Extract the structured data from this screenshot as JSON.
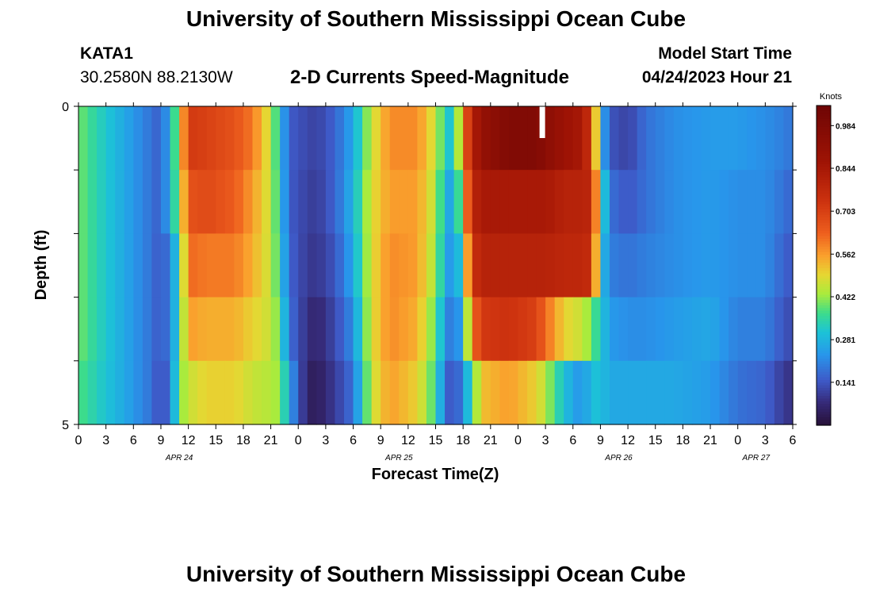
{
  "header": {
    "title": "University of Southern Mississippi Ocean Cube",
    "station": "KATA1",
    "coords": "30.2580N  88.2130W",
    "subtitle": "2-D Currents Speed-Magnitude",
    "model_start_label": "Model Start Time",
    "model_start_value": "04/24/2023 Hour 21"
  },
  "footer": {
    "title": "University of Southern Mississippi Ocean Cube"
  },
  "chart_data": {
    "type": "heatmap",
    "title": "2-D Currents Speed-Magnitude",
    "xlabel": "Forecast Time(Z)",
    "ylabel": "Depth (ft)",
    "x_start_hour": 0,
    "x_end_hour": 78,
    "x_step_hours": 1,
    "x_tick_labels": [
      "0",
      "3",
      "6",
      "9",
      "12",
      "15",
      "18",
      "21",
      "0",
      "3",
      "6",
      "9",
      "12",
      "15",
      "18",
      "21",
      "0",
      "3",
      "6",
      "9",
      "12",
      "15",
      "18",
      "21",
      "0",
      "3",
      "6"
    ],
    "date_labels": [
      {
        "label": "APR 24",
        "hour": 11
      },
      {
        "label": "APR 25",
        "hour": 35
      },
      {
        "label": "APR 26",
        "hour": 59
      },
      {
        "label": "APR 27",
        "hour": 74
      }
    ],
    "ylim": [
      0,
      5
    ],
    "y_tick_labels": [
      "0",
      "5"
    ],
    "depth_rows": 5,
    "colorbar": {
      "label": "Knots",
      "ticks": [
        0.141,
        0.281,
        0.422,
        0.562,
        0.703,
        0.844,
        0.984
      ],
      "min": 0.0,
      "max": 1.05
    },
    "control_points": [
      [
        0,
        0.4,
        0.4,
        0.4,
        0.4,
        0.38
      ],
      [
        2,
        0.34,
        0.34,
        0.34,
        0.34,
        0.33
      ],
      [
        5,
        0.26,
        0.26,
        0.26,
        0.26,
        0.26
      ],
      [
        8,
        0.18,
        0.18,
        0.18,
        0.18,
        0.18
      ],
      [
        9,
        0.15,
        0.15,
        0.14,
        0.14,
        0.12
      ],
      [
        10,
        0.28,
        0.28,
        0.2,
        0.2,
        0.18
      ],
      [
        11,
        0.45,
        0.42,
        0.35,
        0.35,
        0.4
      ],
      [
        12,
        0.72,
        0.66,
        0.62,
        0.56,
        0.46
      ],
      [
        14,
        0.7,
        0.68,
        0.6,
        0.54,
        0.5
      ],
      [
        17,
        0.66,
        0.64,
        0.6,
        0.54,
        0.5
      ],
      [
        19,
        0.6,
        0.56,
        0.54,
        0.5,
        0.46
      ],
      [
        21,
        0.46,
        0.46,
        0.46,
        0.46,
        0.44
      ],
      [
        22,
        0.3,
        0.32,
        0.34,
        0.38,
        0.42
      ],
      [
        23,
        0.15,
        0.15,
        0.16,
        0.18,
        0.25
      ],
      [
        25,
        0.12,
        0.11,
        0.1,
        0.08,
        0.05
      ],
      [
        26,
        0.11,
        0.1,
        0.09,
        0.06,
        0.04
      ],
      [
        28,
        0.16,
        0.16,
        0.14,
        0.12,
        0.1
      ],
      [
        30,
        0.26,
        0.28,
        0.26,
        0.22,
        0.18
      ],
      [
        32,
        0.46,
        0.48,
        0.48,
        0.48,
        0.46
      ],
      [
        34,
        0.58,
        0.56,
        0.58,
        0.58,
        0.56
      ],
      [
        37,
        0.58,
        0.56,
        0.56,
        0.54,
        0.5
      ],
      [
        39,
        0.46,
        0.44,
        0.42,
        0.38,
        0.36
      ],
      [
        40,
        0.34,
        0.3,
        0.28,
        0.24,
        0.18
      ],
      [
        41,
        0.28,
        0.22,
        0.2,
        0.16,
        0.12
      ],
      [
        42,
        0.6,
        0.5,
        0.38,
        0.3,
        0.22
      ],
      [
        43,
        0.8,
        0.78,
        0.74,
        0.6,
        0.36
      ],
      [
        44,
        0.9,
        0.84,
        0.8,
        0.72,
        0.52
      ],
      [
        47,
        0.98,
        0.84,
        0.8,
        0.74,
        0.56
      ],
      [
        50,
        0.98,
        0.84,
        0.8,
        0.7,
        0.5
      ],
      [
        51,
        0.94,
        0.84,
        0.8,
        0.62,
        0.44
      ],
      [
        53,
        0.88,
        0.8,
        0.78,
        0.5,
        0.3
      ],
      [
        55,
        0.84,
        0.8,
        0.78,
        0.46,
        0.22
      ],
      [
        56,
        0.72,
        0.78,
        0.76,
        0.4,
        0.3
      ],
      [
        57,
        0.3,
        0.4,
        0.32,
        0.32,
        0.3
      ],
      [
        58,
        0.14,
        0.18,
        0.2,
        0.24,
        0.26
      ],
      [
        60,
        0.11,
        0.14,
        0.18,
        0.22,
        0.26
      ],
      [
        62,
        0.18,
        0.18,
        0.2,
        0.22,
        0.26
      ],
      [
        65,
        0.22,
        0.22,
        0.22,
        0.24,
        0.26
      ],
      [
        69,
        0.24,
        0.24,
        0.24,
        0.26,
        0.24
      ],
      [
        72,
        0.24,
        0.22,
        0.22,
        0.2,
        0.18
      ],
      [
        75,
        0.22,
        0.22,
        0.22,
        0.2,
        0.16
      ],
      [
        77,
        0.2,
        0.18,
        0.16,
        0.14,
        0.1
      ],
      [
        78,
        0.18,
        0.16,
        0.14,
        0.12,
        0.08
      ]
    ]
  }
}
